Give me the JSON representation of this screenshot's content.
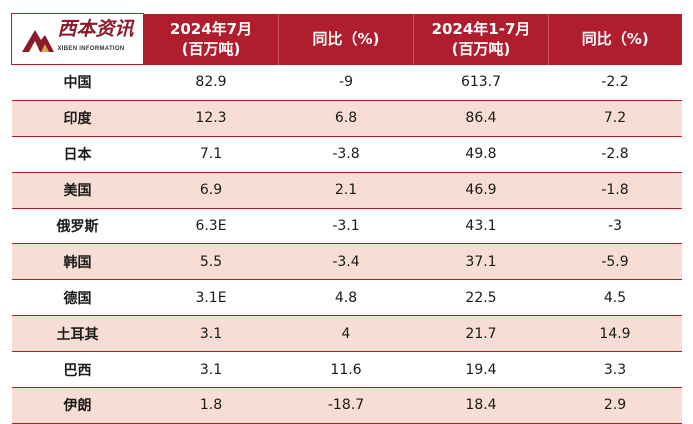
{
  "logo": {
    "cn": "西本资讯",
    "en": "XIBEN INFORMATION"
  },
  "header": {
    "col1_line1": "2024年7月",
    "col1_line2": "(百万吨)",
    "col2": "同比（%)",
    "col3_line1": "2024年1-7月",
    "col3_line2": "(百万吨)",
    "col4": "同比（%)"
  },
  "colors": {
    "header_bg": "#b01e2e",
    "stripe_bg": "#f7ddd3"
  },
  "rows": [
    {
      "country": "中国",
      "jul": "82.9",
      "jul_yoy": "-9",
      "ytd": "613.7",
      "ytd_yoy": "-2.2"
    },
    {
      "country": "印度",
      "jul": "12.3",
      "jul_yoy": "6.8",
      "ytd": "86.4",
      "ytd_yoy": "7.2"
    },
    {
      "country": "日本",
      "jul": "7.1",
      "jul_yoy": "-3.8",
      "ytd": "49.8",
      "ytd_yoy": "-2.8"
    },
    {
      "country": "美国",
      "jul": "6.9",
      "jul_yoy": "2.1",
      "ytd": "46.9",
      "ytd_yoy": "-1.8"
    },
    {
      "country": "俄罗斯",
      "jul": "6.3E",
      "jul_yoy": "-3.1",
      "ytd": "43.1",
      "ytd_yoy": "-3"
    },
    {
      "country": "韩国",
      "jul": "5.5",
      "jul_yoy": "-3.4",
      "ytd": "37.1",
      "ytd_yoy": "-5.9"
    },
    {
      "country": "德国",
      "jul": "3.1E",
      "jul_yoy": "4.8",
      "ytd": "22.5",
      "ytd_yoy": "4.5"
    },
    {
      "country": "土耳其",
      "jul": "3.1",
      "jul_yoy": "4",
      "ytd": "21.7",
      "ytd_yoy": "14.9"
    },
    {
      "country": "巴西",
      "jul": "3.1",
      "jul_yoy": "11.6",
      "ytd": "19.4",
      "ytd_yoy": "3.3"
    },
    {
      "country": "伊朗",
      "jul": "1.8",
      "jul_yoy": "-18.7",
      "ytd": "18.4",
      "ytd_yoy": "2.9"
    }
  ]
}
